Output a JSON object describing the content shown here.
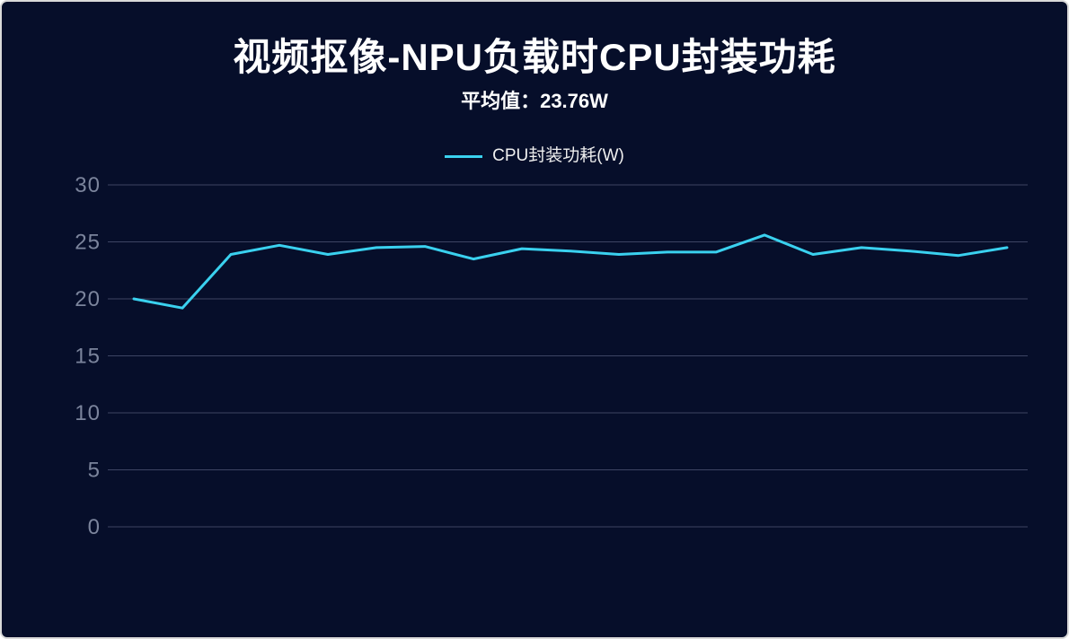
{
  "page": {
    "background_color": "#060e2a",
    "border_color": "#d9d9d9"
  },
  "colors": {
    "grid": "#3d4463",
    "tick_label": "#7b849c",
    "title_text": "#ffffff",
    "line": "#3ad1ef"
  },
  "chart_data": {
    "type": "line",
    "title": "视频抠像-NPU负载时CPU封装功耗",
    "subtitle": "平均值：23.76W",
    "average_value_w": 23.76,
    "legend_position": "top-center",
    "grid": true,
    "x_axis_labels_visible": false,
    "ylim": [
      0,
      30
    ],
    "yticks": [
      0,
      5,
      10,
      15,
      20,
      25,
      30
    ],
    "x": [
      1,
      2,
      3,
      4,
      5,
      6,
      7,
      8,
      9,
      10,
      11,
      12,
      13,
      14,
      15,
      16,
      17,
      18,
      19
    ],
    "series": [
      {
        "name": "CPU封装功耗(W)",
        "color": "#3ad1ef",
        "values": [
          20.0,
          19.2,
          23.9,
          24.7,
          23.9,
          24.5,
          24.6,
          23.5,
          24.4,
          24.2,
          23.9,
          24.1,
          24.1,
          25.6,
          23.9,
          24.5,
          24.2,
          23.8,
          24.5
        ]
      }
    ]
  }
}
